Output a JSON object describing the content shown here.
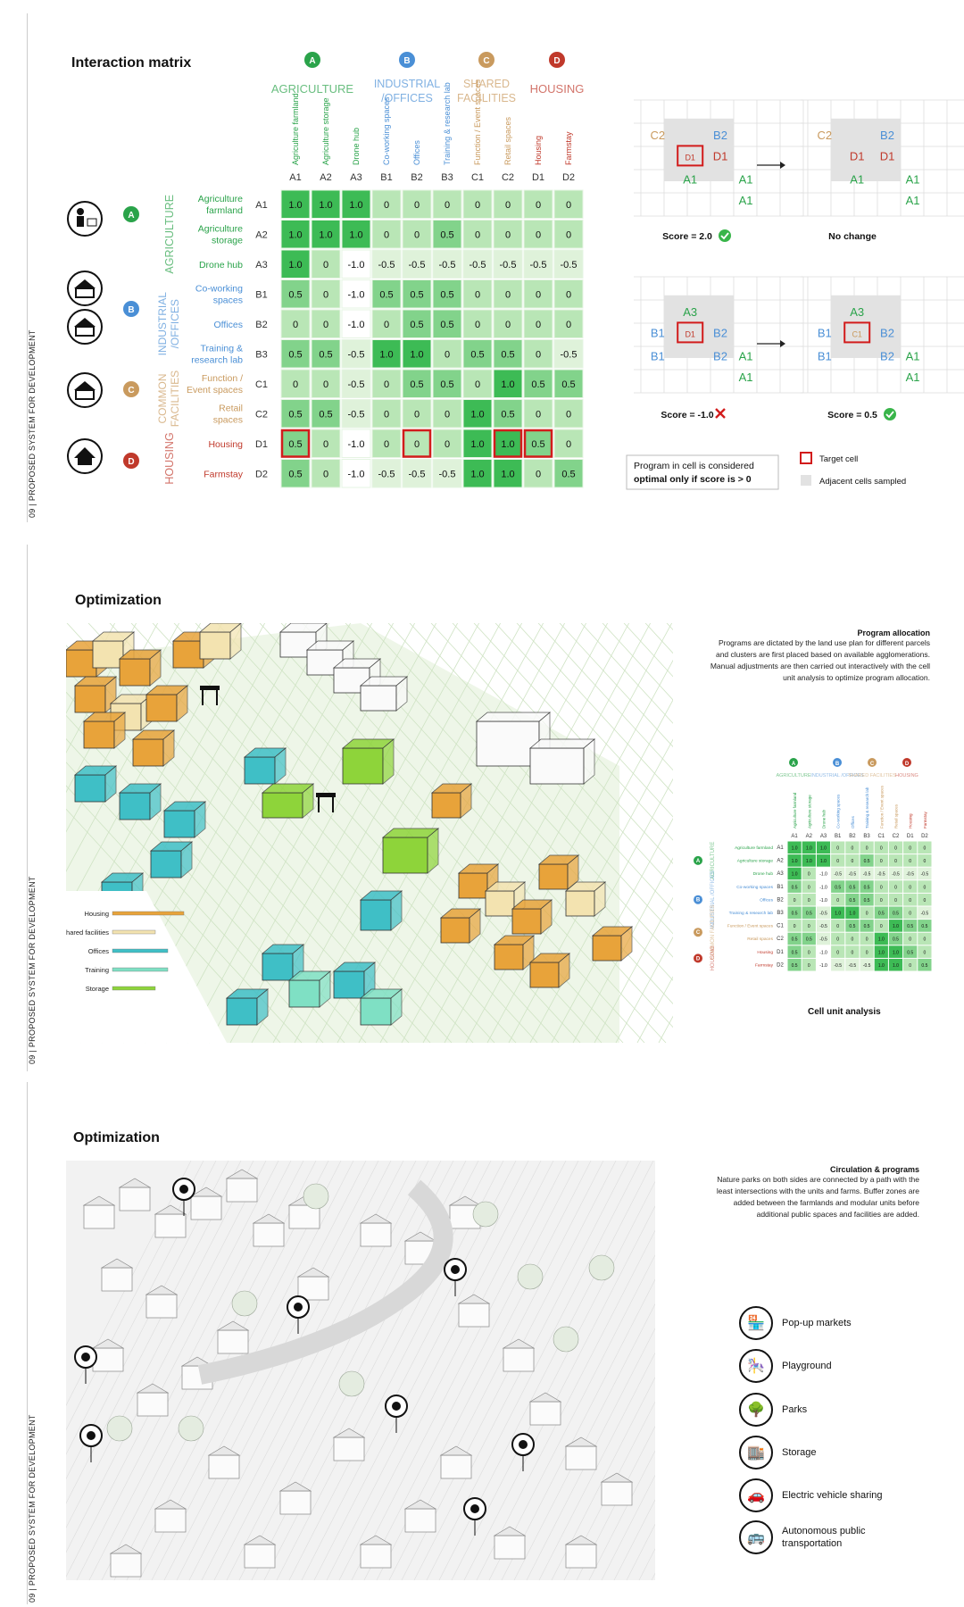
{
  "sidebar_label": "09 | PROPOSED SYSTEM FOR DEVELOPMENT",
  "matrix": {
    "title": "Interaction matrix",
    "groups": [
      {
        "letter": "A",
        "name": "AGRICULTURE",
        "color": "#2aa34a"
      },
      {
        "letter": "B",
        "name": "INDUSTRIAL /OFFICES",
        "color": "#4a8fd6"
      },
      {
        "letter": "C",
        "name": "SHARED FACILITIES",
        "color": "#c99a5e"
      },
      {
        "letter": "D",
        "name": "HOUSING",
        "color": "#c0392b"
      }
    ],
    "row_groups": [
      "AGRICULTURE",
      "INDUSTRIAL /OFFICES",
      "COMMON FACILITIES",
      "HOUSING"
    ],
    "columns": [
      {
        "code": "A1",
        "name": "Agriculture farmland"
      },
      {
        "code": "A2",
        "name": "Agriculture storage"
      },
      {
        "code": "A3",
        "name": "Drone hub"
      },
      {
        "code": "B1",
        "name": "Co-working spaces"
      },
      {
        "code": "B2",
        "name": "Offices"
      },
      {
        "code": "B3",
        "name": "Training & research lab"
      },
      {
        "code": "C1",
        "name": "Function / Event spaces"
      },
      {
        "code": "C2",
        "name": "Retail spaces"
      },
      {
        "code": "D1",
        "name": "Housing"
      },
      {
        "code": "D2",
        "name": "Farmstay"
      }
    ],
    "rows": [
      {
        "code": "A1",
        "name": "Agriculture farmland",
        "values": [
          "1.0",
          "1.0",
          "1.0",
          "0",
          "0",
          "0",
          "0",
          "0",
          "0",
          "0"
        ]
      },
      {
        "code": "A2",
        "name": "Agriculture storage",
        "values": [
          "1.0",
          "1.0",
          "1.0",
          "0",
          "0",
          "0.5",
          "0",
          "0",
          "0",
          "0"
        ]
      },
      {
        "code": "A3",
        "name": "Drone hub",
        "values": [
          "1.0",
          "0",
          "-1.0",
          "-0.5",
          "-0.5",
          "-0.5",
          "-0.5",
          "-0.5",
          "-0.5",
          "-0.5"
        ]
      },
      {
        "code": "B1",
        "name": "Co-working spaces",
        "values": [
          "0.5",
          "0",
          "-1.0",
          "0.5",
          "0.5",
          "0.5",
          "0",
          "0",
          "0",
          "0"
        ]
      },
      {
        "code": "B2",
        "name": "Offices",
        "values": [
          "0",
          "0",
          "-1.0",
          "0",
          "0.5",
          "0.5",
          "0",
          "0",
          "0",
          "0"
        ]
      },
      {
        "code": "B3",
        "name": "Training & research lab",
        "values": [
          "0.5",
          "0.5",
          "-0.5",
          "1.0",
          "1.0",
          "0",
          "0.5",
          "0.5",
          "0",
          "-0.5"
        ]
      },
      {
        "code": "C1",
        "name": "Function / Event spaces",
        "values": [
          "0",
          "0",
          "-0.5",
          "0",
          "0.5",
          "0.5",
          "0",
          "1.0",
          "0.5",
          "0.5"
        ]
      },
      {
        "code": "C2",
        "name": "Retail spaces",
        "values": [
          "0.5",
          "0.5",
          "-0.5",
          "0",
          "0",
          "0",
          "1.0",
          "0.5",
          "0",
          "0"
        ]
      },
      {
        "code": "D1",
        "name": "Housing",
        "values": [
          "0.5",
          "0",
          "-1.0",
          "0",
          "0",
          "0",
          "1.0",
          "1.0",
          "0.5",
          "0"
        ]
      },
      {
        "code": "D2",
        "name": "Farmstay",
        "values": [
          "0.5",
          "0",
          "-1.0",
          "-0.5",
          "-0.5",
          "-0.5",
          "1.0",
          "1.0",
          "0",
          "0.5"
        ]
      }
    ],
    "highlighted": [
      "D1-A1",
      "D1-B2",
      "D1-C2",
      "D1-D1"
    ],
    "scores": [
      {
        "label": "Score = 2.0",
        "status": "ok"
      },
      {
        "label": "No change",
        "status": "none"
      },
      {
        "label": "Score = -1.0",
        "status": "fail"
      },
      {
        "label": "Score = 0.5",
        "status": "ok"
      }
    ],
    "note_line1": "Program in cell is considered",
    "note_line2": "optimal only if score is > 0",
    "legend_target": "Target cell",
    "legend_adjacent": "Adjacent cells sampled"
  },
  "opt1": {
    "title": "Optimization",
    "desc_title": "Program allocation",
    "desc": "Programs are dictated by the land use plan for different parcels and clusters are first placed based on available agglomerations. Manual adjustments are then carried out interactively with the cell unit analysis to optimize program allocation.",
    "caption": "Cell unit analysis",
    "legend": [
      {
        "label": "Housing",
        "color": "#e8a33a"
      },
      {
        "label": "Shared facilities",
        "color": "#f3e3b0"
      },
      {
        "label": "Offices",
        "color": "#3fbfc6"
      },
      {
        "label": "Training",
        "color": "#7fe0c4"
      },
      {
        "label": "Storage",
        "color": "#8ed43a"
      }
    ]
  },
  "opt2": {
    "title": "Optimization",
    "desc_title": "Circulation & programs",
    "desc": "Nature parks on both sides are connected by a path with the least intersections with the units and farms. Buffer zones are added between the farmlands and modular units before additional public spaces and facilities are added.",
    "legend": [
      {
        "icon": "market-icon",
        "glyph": "🏪",
        "label": "Pop-up markets"
      },
      {
        "icon": "playground-icon",
        "glyph": "🎠",
        "label": "Playground"
      },
      {
        "icon": "park-icon",
        "glyph": "🌳",
        "label": "Parks"
      },
      {
        "icon": "storage-icon",
        "glyph": "🏬",
        "label": "Storage"
      },
      {
        "icon": "ev-icon",
        "glyph": "🚗",
        "label": "Electric vehicle sharing"
      },
      {
        "icon": "bus-icon",
        "glyph": "🚌",
        "label": "Autonomous public transportation"
      }
    ]
  }
}
